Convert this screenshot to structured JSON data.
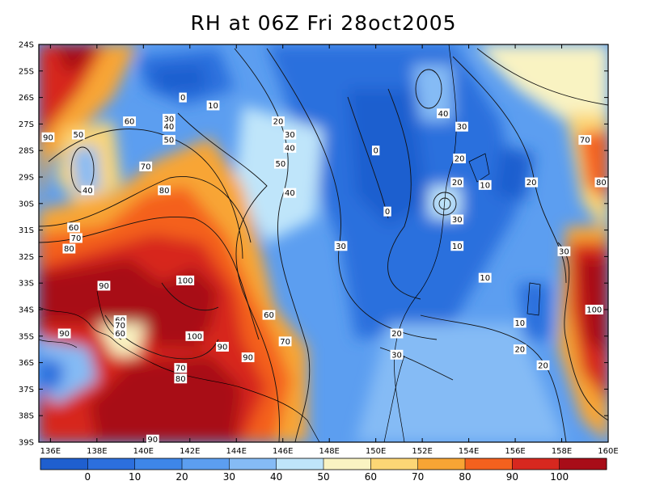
{
  "title": "RH at 06Z Fri 28oct2005",
  "map": {
    "lon_range": [
      135.5,
      160
    ],
    "lat_range": [
      -39,
      -24
    ],
    "lon_ticks": [
      "136E",
      "138E",
      "140E",
      "142E",
      "144E",
      "146E",
      "148E",
      "150E",
      "152E",
      "154E",
      "156E",
      "158E",
      "160E"
    ],
    "lat_ticks": [
      "24S",
      "25S",
      "26S",
      "27S",
      "28S",
      "29S",
      "30S",
      "31S",
      "32S",
      "33S",
      "34S",
      "35S",
      "36S",
      "37S",
      "38S",
      "39S"
    ],
    "contour_labels": [
      {
        "text": "0",
        "lon": 141.7,
        "lat": -26.0
      },
      {
        "text": "10",
        "lon": 143.0,
        "lat": -26.3
      },
      {
        "text": "20",
        "lon": 145.8,
        "lat": -26.9
      },
      {
        "text": "30",
        "lon": 141.1,
        "lat": -26.8
      },
      {
        "text": "40",
        "lon": 141.1,
        "lat": -27.1
      },
      {
        "text": "50",
        "lon": 141.1,
        "lat": -27.6
      },
      {
        "text": "30",
        "lon": 146.3,
        "lat": -27.4
      },
      {
        "text": "40",
        "lon": 146.3,
        "lat": -27.9
      },
      {
        "text": "50",
        "lon": 145.9,
        "lat": -28.5
      },
      {
        "text": "60",
        "lon": 139.4,
        "lat": -26.9
      },
      {
        "text": "50",
        "lon": 137.2,
        "lat": -27.4
      },
      {
        "text": "90",
        "lon": 135.9,
        "lat": -27.5
      },
      {
        "text": "40",
        "lon": 137.6,
        "lat": -29.5
      },
      {
        "text": "70",
        "lon": 140.1,
        "lat": -28.6
      },
      {
        "text": "80",
        "lon": 140.9,
        "lat": -29.5
      },
      {
        "text": "40",
        "lon": 146.3,
        "lat": -29.6
      },
      {
        "text": "60",
        "lon": 137.0,
        "lat": -30.9
      },
      {
        "text": "70",
        "lon": 137.1,
        "lat": -31.3
      },
      {
        "text": "80",
        "lon": 136.8,
        "lat": -31.7
      },
      {
        "text": "0",
        "lon": 150.0,
        "lat": -28.0
      },
      {
        "text": "0",
        "lon": 150.5,
        "lat": -30.3
      },
      {
        "text": "40",
        "lon": 152.9,
        "lat": -26.6
      },
      {
        "text": "30",
        "lon": 153.7,
        "lat": -27.1
      },
      {
        "text": "20",
        "lon": 153.6,
        "lat": -28.3
      },
      {
        "text": "20",
        "lon": 153.5,
        "lat": -29.2
      },
      {
        "text": "10",
        "lon": 154.7,
        "lat": -29.3
      },
      {
        "text": "20",
        "lon": 156.7,
        "lat": -29.2
      },
      {
        "text": "30",
        "lon": 153.5,
        "lat": -30.6
      },
      {
        "text": "10",
        "lon": 153.5,
        "lat": -31.6
      },
      {
        "text": "30",
        "lon": 148.5,
        "lat": -31.6
      },
      {
        "text": "10",
        "lon": 154.7,
        "lat": -32.8
      },
      {
        "text": "30",
        "lon": 158.1,
        "lat": -31.8
      },
      {
        "text": "70",
        "lon": 159.0,
        "lat": -27.6
      },
      {
        "text": "80",
        "lon": 159.7,
        "lat": -29.2
      },
      {
        "text": "90",
        "lon": 138.3,
        "lat": -33.1
      },
      {
        "text": "100",
        "lon": 141.8,
        "lat": -32.9
      },
      {
        "text": "100",
        "lon": 142.2,
        "lat": -35.0
      },
      {
        "text": "60",
        "lon": 145.4,
        "lat": -34.2
      },
      {
        "text": "70",
        "lon": 146.1,
        "lat": -35.2
      },
      {
        "text": "60",
        "lon": 139.0,
        "lat": -34.4
      },
      {
        "text": "70",
        "lon": 139.0,
        "lat": -34.6
      },
      {
        "text": "60",
        "lon": 139.0,
        "lat": -34.9
      },
      {
        "text": "90",
        "lon": 136.6,
        "lat": -34.9
      },
      {
        "text": "90",
        "lon": 143.4,
        "lat": -35.4
      },
      {
        "text": "90",
        "lon": 144.5,
        "lat": -35.8
      },
      {
        "text": "70",
        "lon": 141.6,
        "lat": -36.2
      },
      {
        "text": "80",
        "lon": 141.6,
        "lat": -36.6
      },
      {
        "text": "90",
        "lon": 140.4,
        "lat": -38.9
      },
      {
        "text": "20",
        "lon": 150.9,
        "lat": -34.9
      },
      {
        "text": "30",
        "lon": 150.9,
        "lat": -35.7
      },
      {
        "text": "10",
        "lon": 156.2,
        "lat": -34.5
      },
      {
        "text": "20",
        "lon": 156.2,
        "lat": -35.5
      },
      {
        "text": "20",
        "lon": 157.2,
        "lat": -36.1
      },
      {
        "text": "100",
        "lon": 159.4,
        "lat": -34.0
      }
    ]
  },
  "colorbar": {
    "labels": [
      "0",
      "10",
      "20",
      "30",
      "40",
      "50",
      "60",
      "70",
      "80",
      "90",
      "100"
    ],
    "colors": [
      "#1f5fcf",
      "#2c6fdd",
      "#3e86e8",
      "#5c9ef0",
      "#85bbf5",
      "#bfe5fa",
      "#f9f3c2",
      "#fcd675",
      "#f8a534",
      "#f4611e",
      "#d7281f",
      "#a80d18"
    ]
  }
}
